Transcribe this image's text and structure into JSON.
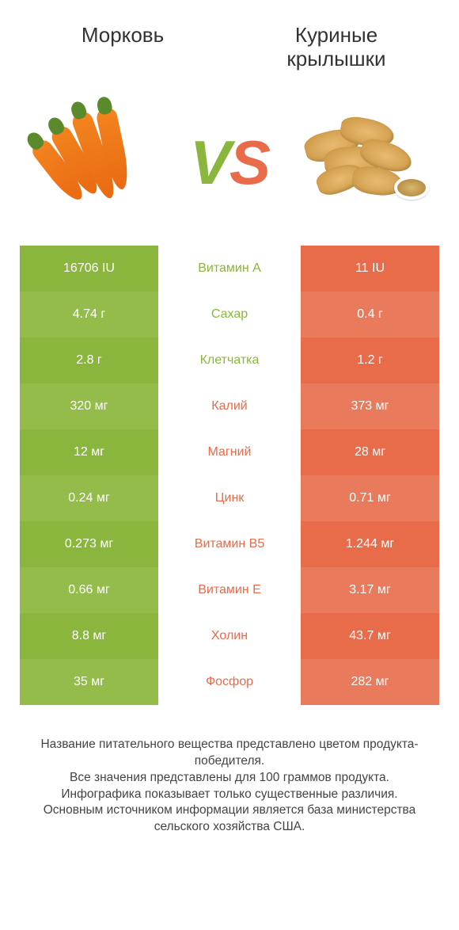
{
  "colors": {
    "green": "#8bb63d",
    "green_alt": "#94bc4b",
    "orange": "#e86b4a",
    "orange_alt": "#ea7a5c",
    "background": "#ffffff"
  },
  "titles": {
    "left": "Морковь",
    "right": "Куриные\nкрылышки"
  },
  "vs": {
    "v": "V",
    "s": "S"
  },
  "rows": [
    {
      "left": "16706 IU",
      "label": "Витамин A",
      "right": "11 IU",
      "winner": "left"
    },
    {
      "left": "4.74 г",
      "label": "Сахар",
      "right": "0.4 г",
      "winner": "left"
    },
    {
      "left": "2.8 г",
      "label": "Клетчатка",
      "right": "1.2 г",
      "winner": "left"
    },
    {
      "left": "320 мг",
      "label": "Калий",
      "right": "373 мг",
      "winner": "right"
    },
    {
      "left": "12 мг",
      "label": "Магний",
      "right": "28 мг",
      "winner": "right"
    },
    {
      "left": "0.24 мг",
      "label": "Цинк",
      "right": "0.71 мг",
      "winner": "right"
    },
    {
      "left": "0.273 мг",
      "label": "Витамин B5",
      "right": "1.244 мг",
      "winner": "right"
    },
    {
      "left": "0.66 мг",
      "label": "Витамин E",
      "right": "3.17 мг",
      "winner": "right"
    },
    {
      "left": "8.8 мг",
      "label": "Холин",
      "right": "43.7 мг",
      "winner": "right"
    },
    {
      "left": "35 мг",
      "label": "Фосфор",
      "right": "282 мг",
      "winner": "right"
    }
  ],
  "notes": [
    "Название питательного вещества представлено цветом продукта-победителя.",
    "Все значения представлены для 100 граммов продукта.",
    "Инфографика показывает только существенные различия.",
    "Основным источником информации является база министерства сельского хозяйства США."
  ]
}
